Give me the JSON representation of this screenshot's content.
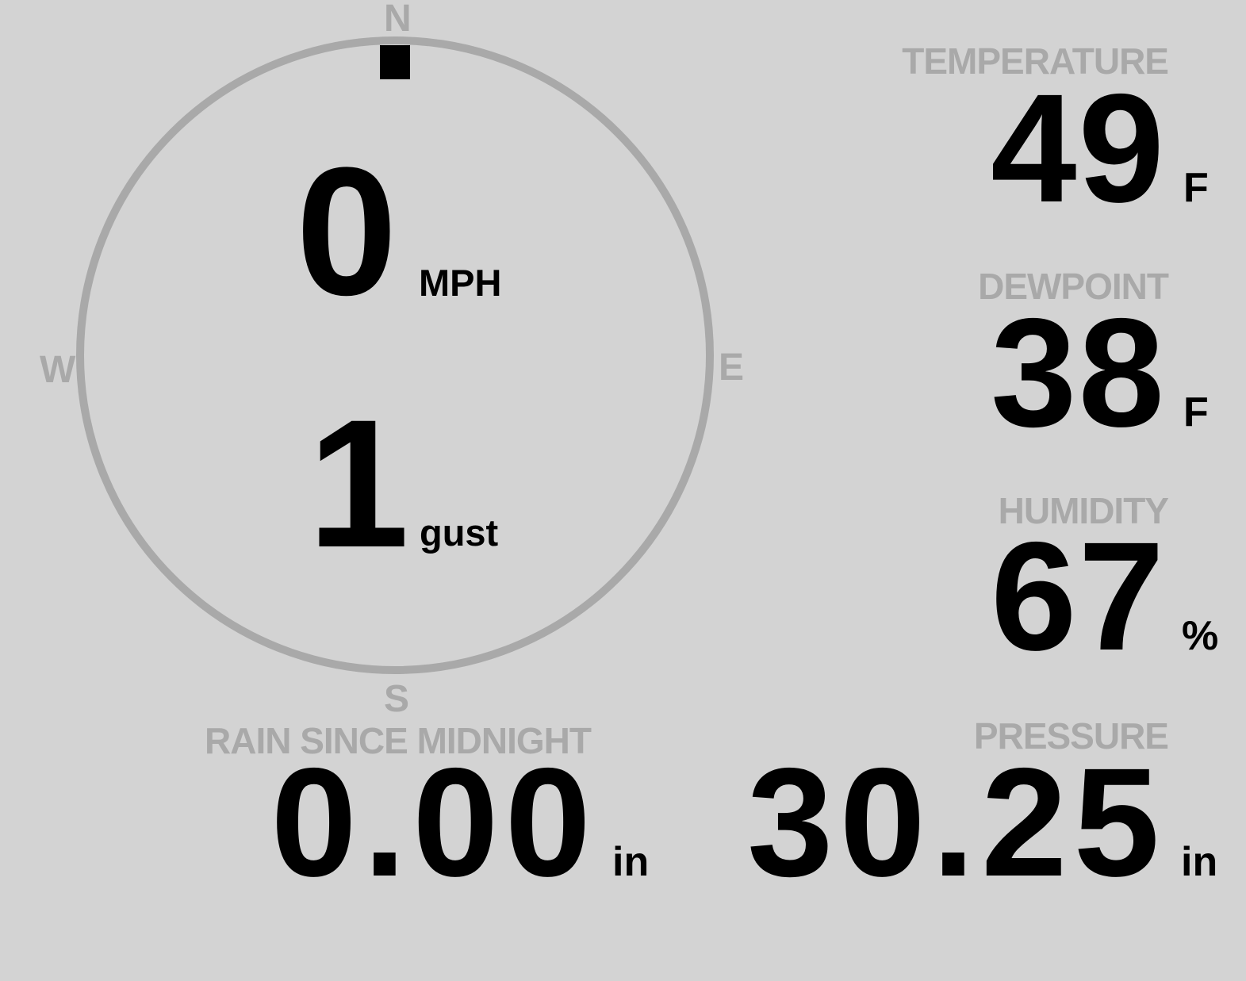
{
  "colors": {
    "background": "#d3d3d3",
    "muted": "#a9a9a9",
    "text": "#000000"
  },
  "wind": {
    "compass": {
      "n": "N",
      "e": "E",
      "s": "S",
      "w": "W"
    },
    "direction_deg": 0,
    "speed": "0",
    "speed_unit": "MPH",
    "gust": "1",
    "gust_label": "gust"
  },
  "temperature": {
    "label": "TEMPERATURE",
    "value": "49",
    "unit": "F"
  },
  "dewpoint": {
    "label": "DEWPOINT",
    "value": "38",
    "unit": "F"
  },
  "humidity": {
    "label": "HUMIDITY",
    "value": "67",
    "unit": "%"
  },
  "pressure": {
    "label": "PRESSURE",
    "value": "30.25",
    "unit": "in"
  },
  "rain": {
    "label": "RAIN SINCE MIDNIGHT",
    "value": "0.00",
    "unit": "in"
  }
}
